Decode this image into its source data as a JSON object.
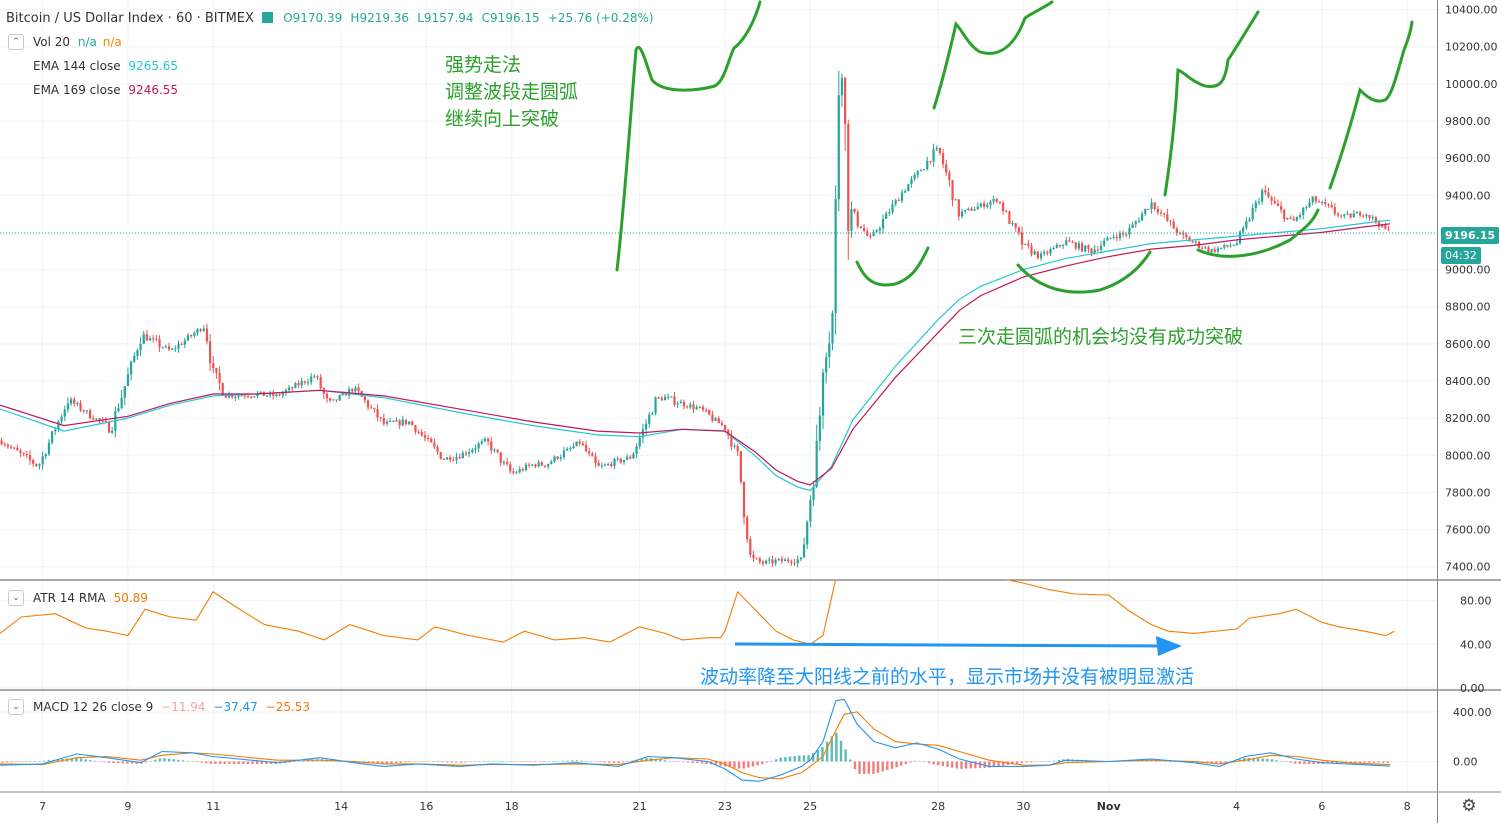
{
  "header": {
    "symbol": "Bitcoin / US Dollar Index · 60 · BITMEX",
    "open": "O9170.39",
    "high": "H9219.36",
    "low": "L9157.94",
    "close": "C9196.15",
    "change": "+25.76 (+0.28%)"
  },
  "indicators": {
    "vol": {
      "label": "Vol 20",
      "v1": "n/a",
      "v2": "n/a"
    },
    "ema144": {
      "label": "EMA 144 close",
      "value": "9265.65"
    },
    "ema169": {
      "label": "EMA 169 close",
      "value": "9246.55"
    },
    "atr": {
      "label": "ATR 14 RMA",
      "value": "50.89"
    },
    "macd": {
      "label": "MACD 12 26 close 9",
      "hist": "−11.94",
      "macd": "−37.47",
      "signal": "−25.53"
    }
  },
  "price_tags": {
    "last": "9196.15",
    "countdown": "04:32"
  },
  "annotations": {
    "strategy_line1": "强势走法",
    "strategy_line2": "调整波段走圆弧",
    "strategy_line3": "继续向上突破",
    "arc_note": "三次走圆弧的机会均没有成功突破",
    "vol_note": "波动率降至大阳线之前的水平，显示市场并没有被明显激活"
  },
  "colors": {
    "up": "#26a69a",
    "down": "#ef5350",
    "ema144": "#26c6da",
    "ema169": "#c2185b",
    "atr": "#f57c00",
    "macd": "#2196f3",
    "signal": "#f57c00",
    "annotation": "#2ca02c",
    "arrow": "#2196f3",
    "last_tag": "#26a69a"
  },
  "chart_data": [
    {
      "type": "candlestick",
      "ylim": [
        7350,
        10430
      ],
      "yticks": [
        "10400.00",
        "10200.00",
        "10000.00",
        "9800.00",
        "9600.00",
        "9400.00",
        "9200.00",
        "9000.00",
        "8800.00",
        "8600.00",
        "8400.00",
        "8200.00",
        "8000.00",
        "7800.00",
        "7600.00",
        "7400.00"
      ],
      "ytick_values": [
        10400,
        10200,
        10000,
        9800,
        9600,
        9400,
        9200,
        9000,
        8800,
        8600,
        8400,
        8200,
        8000,
        7800,
        7600,
        7400
      ],
      "x_labels": [
        "7",
        "9",
        "11",
        "14",
        "16",
        "18",
        "21",
        "23",
        "25",
        "28",
        "30",
        "Nov",
        "4",
        "6",
        "8"
      ],
      "x_label_days": [
        7,
        9,
        11,
        14,
        16,
        18,
        21,
        23,
        25,
        28,
        30,
        32,
        35,
        37,
        39
      ],
      "x_range_days": [
        6.0,
        39.7
      ],
      "last_price": 9196.15,
      "price_path_days": [
        6.0,
        6.9,
        7.6,
        8.6,
        9.3,
        9.4,
        10.0,
        10.8,
        11.0,
        11.3,
        12.0,
        12.5,
        13.4,
        13.7,
        14.3,
        15.0,
        15.6,
        16.4,
        16.8,
        17.4,
        18.0,
        18.5,
        18.8,
        19.6,
        20.0,
        20.8,
        21.4,
        21.6,
        22.4,
        23.0,
        23.3,
        23.6,
        23.9,
        24.2,
        24.8,
        25.2,
        25.3,
        25.45,
        25.55,
        25.7,
        25.9,
        26.4,
        27.2,
        28.0,
        28.5,
        29.4,
        30.0,
        30.4,
        31.0,
        31.6,
        32.1,
        32.4,
        33.0,
        33.7,
        34.4,
        35.0,
        35.6,
        36.3,
        36.8,
        37.5,
        38.0,
        38.6
      ],
      "price_path_values": [
        8080,
        7940,
        8300,
        8140,
        8640,
        8640,
        8560,
        8700,
        8440,
        8320,
        8330,
        8320,
        8430,
        8270,
        8360,
        8170,
        8180,
        7980,
        8000,
        8080,
        7900,
        7950,
        7950,
        8070,
        7930,
        7990,
        8300,
        8310,
        8250,
        8150,
        8000,
        7440,
        7420,
        7430,
        7440,
        8100,
        8560,
        8640,
        8800,
        10350,
        9330,
        9160,
        9430,
        9650,
        9300,
        9380,
        9130,
        9070,
        9150,
        9100,
        9180,
        9190,
        9360,
        9180,
        9100,
        9140,
        9420,
        9250,
        9380,
        9280,
        9310,
        9196
      ],
      "ema144_days": [
        6.0,
        7.5,
        9.0,
        10.0,
        11.0,
        12.0,
        13.5,
        15.0,
        17.0,
        18.5,
        20.0,
        21.0,
        22.0,
        23.0,
        23.7,
        24.2,
        24.7,
        25.0,
        25.5,
        26.0,
        27.0,
        28.0,
        28.5,
        29.0,
        30.0,
        31.0,
        32.0,
        33.0,
        34.0,
        35.0,
        36.0,
        37.0,
        38.0,
        38.6
      ],
      "ema144_values": [
        8250,
        8130,
        8200,
        8270,
        8320,
        8330,
        8350,
        8310,
        8220,
        8160,
        8110,
        8100,
        8140,
        8130,
        8000,
        7890,
        7830,
        7810,
        7940,
        8190,
        8480,
        8730,
        8840,
        8910,
        9000,
        9060,
        9100,
        9140,
        9160,
        9180,
        9200,
        9220,
        9250,
        9265.65
      ],
      "ema169_days": [
        6.0,
        7.5,
        9.0,
        10.0,
        11.0,
        12.0,
        13.5,
        15.0,
        17.0,
        18.5,
        20.0,
        21.0,
        22.0,
        23.0,
        23.7,
        24.2,
        24.7,
        25.0,
        25.5,
        26.0,
        27.0,
        28.0,
        28.5,
        29.0,
        30.0,
        31.0,
        32.0,
        33.0,
        34.0,
        35.0,
        36.0,
        37.0,
        38.0,
        38.6
      ],
      "ema169_values": [
        8270,
        8160,
        8210,
        8280,
        8330,
        8330,
        8350,
        8320,
        8240,
        8180,
        8130,
        8120,
        8140,
        8130,
        8020,
        7920,
        7860,
        7840,
        7930,
        8140,
        8420,
        8660,
        8780,
        8860,
        8960,
        9020,
        9070,
        9110,
        9130,
        9160,
        9180,
        9200,
        9230,
        9246.55
      ]
    },
    {
      "type": "line",
      "name": "ATR 14 RMA",
      "ylim": [
        0,
        97
      ],
      "yticks": [
        "80.00",
        "40.00",
        "0.00"
      ],
      "ytick_values": [
        80,
        40,
        0
      ],
      "x_days": [
        6.0,
        6.5,
        7.3,
        8.0,
        8.5,
        9.0,
        9.4,
        10.0,
        10.6,
        11.0,
        11.5,
        12.2,
        13.0,
        13.6,
        14.2,
        15.0,
        15.8,
        16.2,
        17.0,
        17.8,
        18.3,
        19.0,
        19.7,
        20.3,
        21.0,
        21.6,
        22.0,
        22.6,
        22.9,
        23.0,
        23.3,
        23.7,
        24.2,
        24.6,
        25.0,
        25.3,
        25.6,
        26.0,
        26.5,
        27.0,
        27.5,
        28.0,
        28.5,
        29.0,
        29.5,
        30.0,
        30.6,
        31.2,
        32.0,
        32.5,
        33.0,
        33.4,
        34.0,
        35.0,
        35.3,
        36.0,
        36.4,
        37.0,
        37.4,
        38.0,
        38.5,
        38.7
      ],
      "values": [
        50,
        65,
        68,
        55,
        52,
        48,
        72,
        65,
        62,
        88,
        75,
        58,
        52,
        44,
        58,
        48,
        44,
        56,
        48,
        42,
        52,
        44,
        46,
        42,
        56,
        50,
        44,
        46,
        46,
        52,
        88,
        72,
        52,
        44,
        40,
        48,
        100,
        100,
        100,
        100,
        100,
        100,
        100,
        100,
        100,
        96,
        90,
        86,
        85,
        70,
        58,
        52,
        50,
        54,
        64,
        68,
        72,
        60,
        56,
        52,
        48,
        52
      ]
    },
    {
      "type": "line",
      "name": "MACD 12 26 close 9",
      "ylim": [
        -230,
        560
      ],
      "yticks": [
        "400.00",
        "0.00"
      ],
      "ytick_values": [
        400,
        0
      ],
      "x_days": [
        6.0,
        7.0,
        7.8,
        8.5,
        9.3,
        9.8,
        10.5,
        11.0,
        11.6,
        12.5,
        13.5,
        14.3,
        15.0,
        15.8,
        16.8,
        17.5,
        18.5,
        19.5,
        20.5,
        21.2,
        21.8,
        22.6,
        23.0,
        23.4,
        23.8,
        24.3,
        24.8,
        25.0,
        25.3,
        25.6,
        25.8,
        26.1,
        26.5,
        27.0,
        27.5,
        28.0,
        28.5,
        29.2,
        30.0,
        30.6,
        31.0,
        32.0,
        33.0,
        34.0,
        34.6,
        35.2,
        35.8,
        36.4,
        37.0,
        37.6,
        38.2,
        38.6
      ],
      "macd": [
        -30,
        -20,
        60,
        30,
        -10,
        80,
        70,
        40,
        20,
        -10,
        30,
        -10,
        -40,
        -20,
        -40,
        -20,
        -30,
        -10,
        -40,
        40,
        30,
        0,
        -60,
        -150,
        -160,
        -110,
        -40,
        10,
        160,
        490,
        500,
        300,
        160,
        110,
        150,
        100,
        20,
        -40,
        -40,
        -30,
        10,
        0,
        20,
        -10,
        -40,
        40,
        70,
        20,
        -10,
        -20,
        -30,
        -37.47
      ],
      "signal": [
        -20,
        -25,
        30,
        40,
        10,
        50,
        70,
        60,
        40,
        10,
        10,
        0,
        -20,
        -20,
        -30,
        -25,
        -25,
        -20,
        -25,
        10,
        30,
        20,
        -20,
        -90,
        -130,
        -140,
        -90,
        -40,
        40,
        250,
        380,
        400,
        260,
        160,
        140,
        130,
        80,
        10,
        -30,
        -30,
        -10,
        0,
        10,
        0,
        -20,
        10,
        50,
        40,
        10,
        -10,
        -20,
        -25.53
      ],
      "hist": [
        -10,
        5,
        30,
        -10,
        -20,
        30,
        0,
        -20,
        -20,
        -20,
        20,
        -10,
        -20,
        0,
        -10,
        5,
        -5,
        10,
        -15,
        30,
        0,
        -20,
        -40,
        -60,
        -30,
        30,
        50,
        50,
        120,
        240,
        120,
        -100,
        -100,
        -50,
        10,
        -30,
        -60,
        -50,
        -10,
        0,
        20,
        0,
        10,
        -10,
        -20,
        30,
        20,
        -20,
        -20,
        -10,
        -10,
        -11.94
      ]
    }
  ]
}
